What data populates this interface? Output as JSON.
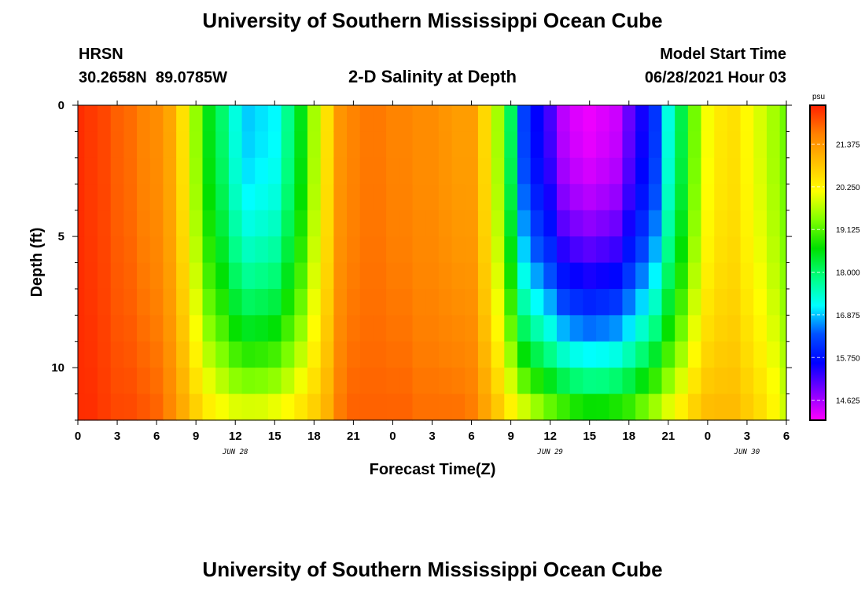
{
  "header": {
    "title": "University of Southern Mississippi Ocean Cube",
    "station": "HRSN",
    "coords": "30.2658N  89.0785W",
    "subtitle": "2-D Salinity at Depth",
    "model_label": "Model Start Time",
    "model_time": "06/28/2021 Hour 03"
  },
  "footer": {
    "title": "University of Southern Mississippi Ocean Cube"
  },
  "chart_data": {
    "type": "heatmap",
    "title": "2-D Salinity at Depth",
    "xlabel": "Forecast Time(Z)",
    "ylabel": "Depth (ft)",
    "x_ticks": [
      "0",
      "3",
      "6",
      "9",
      "12",
      "15",
      "18",
      "21",
      "0",
      "3",
      "6",
      "9",
      "12",
      "15",
      "18",
      "21",
      "0",
      "3",
      "6"
    ],
    "date_labels": [
      "JUN 28",
      "JUN 29",
      "JUN 30"
    ],
    "x_range_hours": [
      0,
      54
    ],
    "y_ticks": [
      "0",
      "5",
      "10"
    ],
    "y_range_ft": [
      0,
      12
    ],
    "y_inverted": true,
    "colorbar": {
      "unit": "psu",
      "labels": [
        "21.375",
        "20.250",
        "19.125",
        "18.000",
        "16.875",
        "15.750",
        "14.625"
      ],
      "range": [
        14.1,
        22.4
      ],
      "colors": [
        "#ff00ff",
        "#8000ff",
        "#0000ff",
        "#0050ff",
        "#00ffff",
        "#00ff80",
        "#00e000",
        "#80ff00",
        "#ffff00",
        "#ffc000",
        "#ff8000",
        "#ff2000"
      ]
    },
    "salinity_field": {
      "hours": [
        0,
        1,
        2,
        3,
        4,
        5,
        6,
        7,
        8,
        9,
        10,
        11,
        12,
        13,
        14,
        15,
        16,
        17,
        18,
        19,
        20,
        21,
        22,
        23,
        24,
        25,
        26,
        27,
        28,
        29,
        30,
        31,
        32,
        33,
        34,
        35,
        36,
        37,
        38,
        39,
        40,
        41,
        42,
        43,
        44,
        45,
        46,
        47,
        48,
        49,
        50,
        51,
        52,
        53,
        54
      ],
      "depths_ft": [
        0.5,
        1.5,
        2.5,
        3.5,
        4.5,
        5.5,
        6.5,
        7.5,
        8.5,
        9.5,
        10.5,
        11.5
      ],
      "surface": [
        22.3,
        22.2,
        22.1,
        21.9,
        21.8,
        21.6,
        21.5,
        21.2,
        20.5,
        19.5,
        18.5,
        18.0,
        17.3,
        16.9,
        17.0,
        17.1,
        17.8,
        18.5,
        19.6,
        20.5,
        21.4,
        21.6,
        21.7,
        21.7,
        21.6,
        21.6,
        21.5,
        21.5,
        21.4,
        21.3,
        21.3,
        20.6,
        19.6,
        18.1,
        16.2,
        15.6,
        15.2,
        14.5,
        14.3,
        14.2,
        14.3,
        14.4,
        15.0,
        15.5,
        16.1,
        17.3,
        18.2,
        19.3,
        20.1,
        20.4,
        20.5,
        20.2,
        19.9,
        19.6,
        19.3
      ],
      "deep": [
        22.3,
        22.3,
        22.2,
        22.1,
        22.1,
        22.0,
        21.9,
        21.6,
        21.2,
        20.8,
        20.5,
        20.3,
        20.2,
        20.2,
        20.2,
        20.3,
        20.4,
        20.6,
        20.8,
        21.1,
        21.7,
        21.9,
        21.9,
        21.9,
        21.9,
        21.9,
        21.8,
        21.8,
        21.8,
        21.8,
        21.7,
        21.3,
        20.9,
        20.5,
        20.2,
        19.9,
        19.6,
        19.4,
        19.2,
        19.1,
        19.1,
        19.2,
        19.3,
        19.6,
        19.9,
        20.2,
        20.5,
        20.8,
        21.0,
        21.0,
        21.0,
        20.8,
        20.6,
        20.3,
        19.9
      ],
      "shape_exponent": 2.2
    }
  }
}
